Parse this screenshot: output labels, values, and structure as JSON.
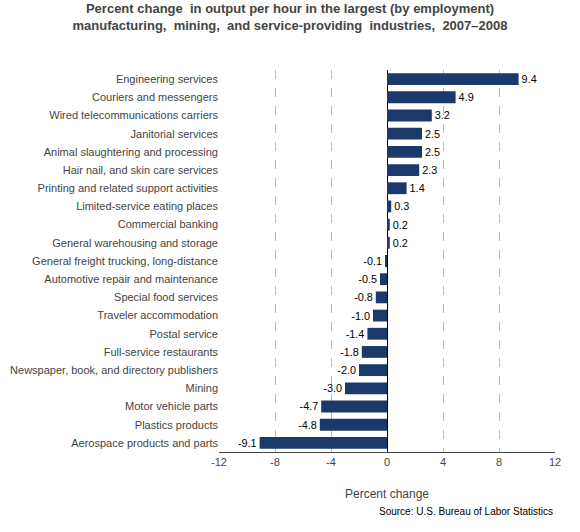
{
  "chart_data": {
    "type": "bar",
    "orientation": "horizontal",
    "title": "Percent change  in output per hour in the largest (by employment)\nmanufacturing,  mining,  and service-providing  industries,  2007–2008",
    "categories": [
      "Aerospace products and parts",
      "Plastics products",
      "Motor vehicle parts",
      "Mining",
      "Newspaper, book, and directory publishers",
      "Full-service restaurants",
      "Postal service",
      "Traveler accommodation",
      "Special food services",
      "Automotive repair and maintenance",
      "General freight trucking, long-distance",
      "General warehousing and storage",
      "Commercial banking",
      "Limited-service eating places",
      "Printing and related support activities",
      "Hair nail, and skin care services",
      "Animal slaughtering and processing",
      "Janitorial services",
      "Wired telecommunications carriers",
      "Couriers and messengers",
      "Engineering services"
    ],
    "values": [
      -9.1,
      -4.8,
      -4.7,
      -3.0,
      -2.0,
      -1.8,
      -1.4,
      -1.0,
      -0.8,
      -0.5,
      -0.1,
      0.2,
      0.2,
      0.3,
      1.4,
      2.3,
      2.5,
      2.5,
      3.2,
      4.9,
      9.4
    ],
    "value_labels": [
      "-9.1",
      "-4.8",
      "-4.7",
      "-3.0",
      "-2.0",
      "-1.8",
      "-1.4",
      "-1.0",
      "-0.8",
      "-0.5",
      "-0.1",
      "0.2",
      "0.2",
      "0.3",
      "1.4",
      "2.3",
      "2.5",
      "2.5",
      "3.2",
      "4.9",
      "9.4"
    ],
    "data_labels": true,
    "color": "#1b3a6b",
    "xlabel": "Percent change",
    "xlim": [
      -12,
      12
    ],
    "xticks": [
      -12,
      -8,
      -4,
      0,
      4,
      8,
      12
    ],
    "grid": true,
    "annotations": [
      "Source: U.S. Bureau of Labor Statistics"
    ]
  }
}
